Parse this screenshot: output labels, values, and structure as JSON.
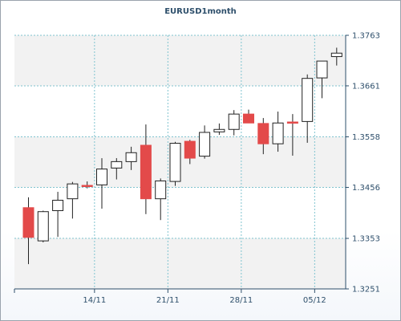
{
  "chart_data": {
    "type": "candlestick",
    "title": "EURUSD1month",
    "xlabel": "",
    "ylabel": "",
    "ylim": [
      1.3251,
      1.3763
    ],
    "y_ticks": [
      "1.3763",
      "1.3661",
      "1.3558",
      "1.3456",
      "1.3353",
      "1.3251"
    ],
    "x_ticks": [
      {
        "index": 4.5,
        "label": "14/11"
      },
      {
        "index": 9.5,
        "label": "21/11"
      },
      {
        "index": 14.5,
        "label": "28/11"
      },
      {
        "index": 19.5,
        "label": "05/12"
      }
    ],
    "grid": true,
    "colors": {
      "up": "#ffffff",
      "down": "#e34a4a",
      "outline": "#222222",
      "grid": "#7fc3cf",
      "axis": "#2e4f6b"
    },
    "candles": [
      {
        "open": 1.3415,
        "high": 1.3436,
        "low": 1.3301,
        "close": 1.3355
      },
      {
        "open": 1.3348,
        "high": 1.3409,
        "low": 1.3345,
        "close": 1.3407
      },
      {
        "open": 1.3409,
        "high": 1.3447,
        "low": 1.3356,
        "close": 1.343
      },
      {
        "open": 1.3433,
        "high": 1.3467,
        "low": 1.3393,
        "close": 1.3463
      },
      {
        "open": 1.346,
        "high": 1.3468,
        "low": 1.3454,
        "close": 1.3458
      },
      {
        "open": 1.3461,
        "high": 1.3515,
        "low": 1.3413,
        "close": 1.3493
      },
      {
        "open": 1.3495,
        "high": 1.3515,
        "low": 1.3472,
        "close": 1.3508
      },
      {
        "open": 1.3508,
        "high": 1.3538,
        "low": 1.3491,
        "close": 1.3526
      },
      {
        "open": 1.3541,
        "high": 1.3583,
        "low": 1.3402,
        "close": 1.3433
      },
      {
        "open": 1.3433,
        "high": 1.3474,
        "low": 1.339,
        "close": 1.3469
      },
      {
        "open": 1.3468,
        "high": 1.3548,
        "low": 1.3459,
        "close": 1.3545
      },
      {
        "open": 1.3549,
        "high": 1.3552,
        "low": 1.3503,
        "close": 1.3515
      },
      {
        "open": 1.3519,
        "high": 1.3581,
        "low": 1.3514,
        "close": 1.3567
      },
      {
        "open": 1.3568,
        "high": 1.3585,
        "low": 1.3562,
        "close": 1.3573
      },
      {
        "open": 1.3573,
        "high": 1.3612,
        "low": 1.3561,
        "close": 1.3604
      },
      {
        "open": 1.3604,
        "high": 1.3613,
        "low": 1.3586,
        "close": 1.3586
      },
      {
        "open": 1.3585,
        "high": 1.3596,
        "low": 1.3523,
        "close": 1.3544
      },
      {
        "open": 1.3544,
        "high": 1.3609,
        "low": 1.3528,
        "close": 1.3586
      },
      {
        "open": 1.3588,
        "high": 1.3604,
        "low": 1.352,
        "close": 1.3586
      },
      {
        "open": 1.3589,
        "high": 1.3684,
        "low": 1.3546,
        "close": 1.3676
      },
      {
        "open": 1.3677,
        "high": 1.3711,
        "low": 1.3636,
        "close": 1.3711
      },
      {
        "open": 1.372,
        "high": 1.3738,
        "low": 1.3702,
        "close": 1.3727
      }
    ]
  }
}
